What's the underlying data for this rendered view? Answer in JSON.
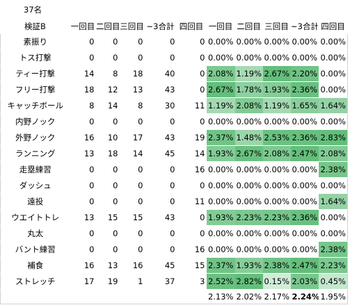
{
  "caption": "37名",
  "table": {
    "header": [
      "検証B",
      "一回目",
      "二回目",
      "三回目",
      "~3合計",
      "四回目",
      "一回目",
      "二回目",
      "三回目",
      "~3合計",
      "四回目"
    ],
    "rows": [
      [
        "素振り",
        "0",
        "0",
        "0",
        "0",
        "0",
        "0.00%",
        "0.00%",
        "0.00%",
        "0.00%",
        "0.00%"
      ],
      [
        "トス打撃",
        "0",
        "0",
        "0",
        "0",
        "0",
        "0.00%",
        "0.00%",
        "0.00%",
        "0.00%",
        "0.00%"
      ],
      [
        "ティー打撃",
        "14",
        "8",
        "18",
        "40",
        "0",
        "2.08%",
        "1.19%",
        "2.67%",
        "2.20%",
        "0.00%"
      ],
      [
        "フリー打撃",
        "18",
        "12",
        "13",
        "43",
        "0",
        "2.67%",
        "1.78%",
        "1.93%",
        "2.36%",
        "0.00%"
      ],
      [
        "キャッチボール",
        "8",
        "14",
        "8",
        "30",
        "11",
        "1.19%",
        "2.08%",
        "1.19%",
        "1.65%",
        "1.64%"
      ],
      [
        "内野ノック",
        "0",
        "0",
        "0",
        "0",
        "0",
        "0.00%",
        "0.00%",
        "0.00%",
        "0.00%",
        "0.00%"
      ],
      [
        "外野ノック",
        "16",
        "10",
        "17",
        "43",
        "19",
        "2.37%",
        "1.48%",
        "2.53%",
        "2.36%",
        "2.83%"
      ],
      [
        "ランニング",
        "13",
        "18",
        "14",
        "45",
        "14",
        "1.93%",
        "2.67%",
        "2.08%",
        "2.47%",
        "2.08%"
      ],
      [
        "走塁練習",
        "0",
        "0",
        "0",
        "0",
        "16",
        "0.00%",
        "0.00%",
        "0.00%",
        "0.00%",
        "2.38%"
      ],
      [
        "ダッシュ",
        "0",
        "0",
        "0",
        "0",
        "0",
        "0.00%",
        "0.00%",
        "0.00%",
        "0.00%",
        "0.00%"
      ],
      [
        "遠投",
        "0",
        "0",
        "0",
        "0",
        "11",
        "0.00%",
        "0.00%",
        "0.00%",
        "0.00%",
        "1.64%"
      ],
      [
        "ウエイトトレ",
        "13",
        "15",
        "15",
        "43",
        "0",
        "1.93%",
        "2.23%",
        "2.23%",
        "2.36%",
        "0.00%"
      ],
      [
        "丸太",
        "0",
        "0",
        "0",
        "0",
        "0",
        "0.00%",
        "0.00%",
        "0.00%",
        "0.00%",
        "0.00%"
      ],
      [
        "バント練習",
        "0",
        "0",
        "0",
        "0",
        "16",
        "0.00%",
        "0.00%",
        "0.00%",
        "0.00%",
        "2.38%"
      ],
      [
        "補食",
        "16",
        "13",
        "16",
        "45",
        "15",
        "2.37%",
        "1.93%",
        "2.38%",
        "2.47%",
        "2.23%"
      ],
      [
        "ストレッチ",
        "17",
        "19",
        "1",
        "37",
        "3",
        "2.52%",
        "2.82%",
        "0.15%",
        "2.03%",
        "0.45%"
      ]
    ],
    "footer": [
      "2.13%",
      "2.02%",
      "2.17%",
      "2.24%",
      "1.95%"
    ],
    "footer_bold_index": 3
  }
}
